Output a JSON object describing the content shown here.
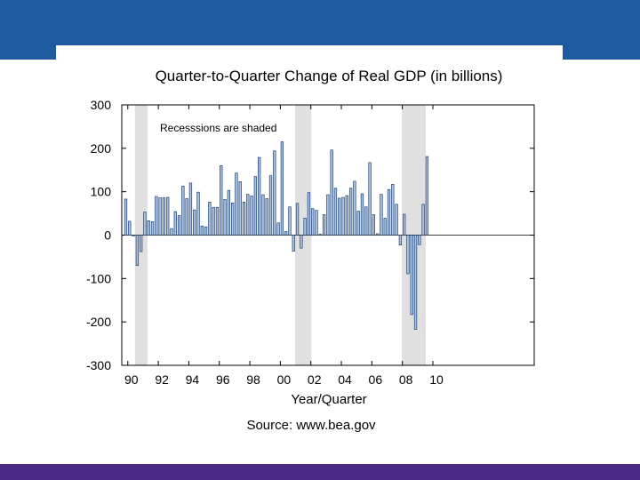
{
  "chart_data": {
    "type": "bar",
    "title": "Quarter-to-Quarter Change of Real GDP (in billions)",
    "xlabel": "Year/Quarter",
    "ylabel": "",
    "ylim": [
      -300,
      300
    ],
    "yticks": [
      300,
      200,
      100,
      0,
      -100,
      -200,
      -300
    ],
    "xtick_labels": [
      "90",
      "92",
      "94",
      "96",
      "98",
      "00",
      "02",
      "04",
      "06",
      "08",
      "10"
    ],
    "annotation": "Recesssions are shaded",
    "source_label": "Source:",
    "source_value": "www.bea.gov",
    "start": "1989Q4",
    "values": [
      83,
      32,
      -2,
      -70,
      -38,
      53,
      33,
      31,
      89,
      86,
      86,
      87,
      15,
      54,
      45,
      113,
      84,
      120,
      58,
      99,
      21,
      19,
      76,
      64,
      64,
      160,
      82,
      103,
      74,
      143,
      123,
      76,
      94,
      90,
      135,
      179,
      93,
      84,
      137,
      194,
      28,
      215,
      8,
      65,
      -37,
      73,
      -30,
      39,
      98,
      61,
      57,
      2,
      47,
      93,
      196,
      108,
      85,
      87,
      91,
      108,
      124,
      55,
      95,
      65,
      167,
      47,
      3,
      94,
      39,
      105,
      117,
      71,
      -23,
      48,
      -89,
      -183,
      -217,
      -22,
      71,
      181
    ],
    "recessions": [
      {
        "start": "1990Q3",
        "end": "1991Q1"
      },
      {
        "start": "2001Q1",
        "end": "2001Q4"
      },
      {
        "start": "2008Q1",
        "end": "2009Q2"
      }
    ],
    "colors": {
      "bar_fill": "#a9c4e4",
      "bar_stroke": "#1f3f73",
      "shade": "#e0e0e0"
    }
  },
  "colors": {
    "top_band": "#1f5aa0",
    "bottom_band": "#4b2a87"
  }
}
